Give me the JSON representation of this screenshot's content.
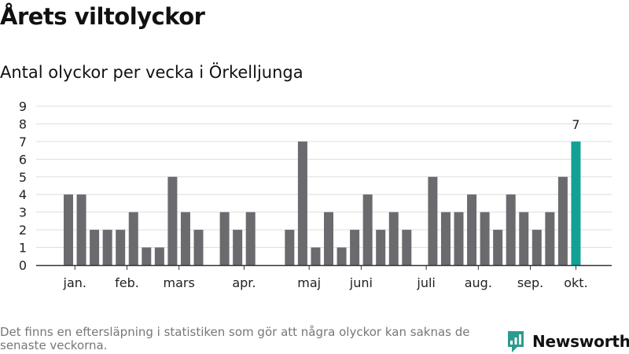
{
  "header": {
    "title": "Årets viltolyckor",
    "subtitle": "Antal olyckor per vecka i Örkelljunga"
  },
  "footer": {
    "note": "Det finns en eftersläpning i statistiken som gör att några olyckor kan saknas de senaste veckorna.",
    "brand": "Newsworthy"
  },
  "colors": {
    "bar": "#6b6a6e",
    "highlight": "#11a197",
    "grid": "#dddddd",
    "axis": "#333333",
    "brand": "#2c9a8c"
  },
  "chart_data": {
    "type": "bar",
    "title": "Antal olyckor per vecka i Örkelljunga",
    "xlabel": "",
    "ylabel": "",
    "ylim": [
      0,
      9
    ],
    "yticks": [
      0,
      1,
      2,
      3,
      4,
      5,
      6,
      7,
      8,
      9
    ],
    "grid": true,
    "weeks": [
      1,
      2,
      3,
      4,
      5,
      6,
      7,
      8,
      9,
      10,
      11,
      12,
      13,
      14,
      15,
      16,
      17,
      18,
      19,
      20,
      21,
      22,
      23,
      24,
      25,
      26,
      27,
      28,
      29,
      30,
      31,
      32,
      33,
      34,
      35,
      36,
      37,
      38,
      39,
      40
    ],
    "values": [
      4,
      4,
      2,
      2,
      2,
      3,
      1,
      1,
      5,
      3,
      2,
      0,
      3,
      2,
      3,
      0,
      0,
      2,
      7,
      1,
      3,
      1,
      2,
      4,
      2,
      3,
      2,
      0,
      5,
      3,
      3,
      4,
      3,
      2,
      4,
      3,
      2,
      3,
      5,
      7
    ],
    "highlight_index": 39,
    "highlight_label": "7",
    "month_labels": [
      {
        "label": "jan.",
        "week": 1.5
      },
      {
        "label": "feb.",
        "week": 5.5
      },
      {
        "label": "mars",
        "week": 9.5
      },
      {
        "label": "apr.",
        "week": 14.5
      },
      {
        "label": "maj",
        "week": 19.5
      },
      {
        "label": "juni",
        "week": 23.5
      },
      {
        "label": "juli",
        "week": 28.5
      },
      {
        "label": "aug.",
        "week": 32.5
      },
      {
        "label": "sep.",
        "week": 36.5
      },
      {
        "label": "okt.",
        "week": 40
      }
    ]
  }
}
